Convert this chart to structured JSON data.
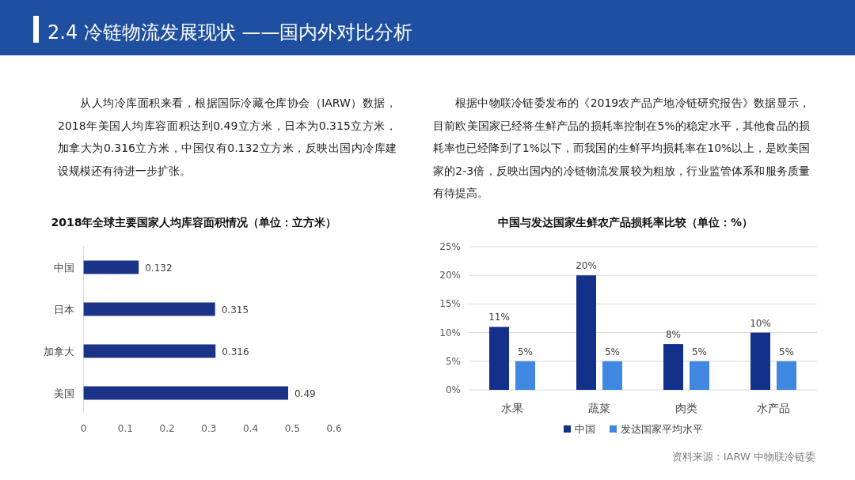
{
  "chart_data": [
    {
      "type": "bar",
      "orientation": "horizontal",
      "title": "2018年全球主要国家人均库容面积情况（单位：立方米）",
      "subtitle": "从人均冷库面积来看，根据国际冷藏仓库协会（IARW）数据，2018年美国人均库容面积达到0.49立方米，日本为0.315立方米，加拿大为0.316立方米，中国仅有0.132立方米，反映出国内冷库建设规模还有待进一步扩张。",
      "annotations": [
        "2.4 冷链物流发展现状 ——国内外对比分析"
      ],
      "categories": [
        "中国",
        "日本",
        "加拿大",
        "美国"
      ],
      "values": [
        0.132,
        0.315,
        0.316,
        0.49
      ],
      "color": "#1a3387",
      "xlim": [
        0,
        0.6
      ],
      "xticks": [
        0,
        0.1,
        0.2,
        0.3,
        0.4,
        0.5,
        0.6
      ],
      "data_labels": true
    },
    {
      "type": "bar",
      "title": "中国与发达国家生鲜农产品损耗率比较（单位：%）",
      "subtitle": "根据中物联冷链委发布的《2019农产品产地冷链研究报告》数据显示，目前欧美国家已经将生鲜产品的损耗率控制在5%的稳定水平，其他食品的损耗率也已经降到了1%以下，而我国的生鲜平均损耗率在10%以上，是欧美国家的2-3倍，反映出国内的冷链物流发展较为粗放，行业监管体系和服务质量有待提高。",
      "annotations": [
        "资料来源：IARW 中物联冷链委"
      ],
      "categories": [
        "水果",
        "蔬菜",
        "肉类",
        "水产品"
      ],
      "series": [
        {
          "name": "中国",
          "color": "#13318a",
          "values": [
            11,
            20,
            8,
            10
          ],
          "value_labels": [
            "11%",
            "20%",
            "8%",
            "10%"
          ]
        },
        {
          "name": "发达国家平均水平",
          "color": "#3f87e0",
          "values": [
            5,
            5,
            5,
            5
          ],
          "value_labels": [
            "5%",
            "5%",
            "5%",
            "5%"
          ]
        }
      ],
      "ylim": [
        0,
        25
      ],
      "yticks": [
        {
          "value": 0,
          "label": "0%"
        },
        {
          "value": 5,
          "label": "5%"
        },
        {
          "value": 10,
          "label": "10%"
        },
        {
          "value": 15,
          "label": "15%"
        },
        {
          "value": 20,
          "label": "20%"
        },
        {
          "value": 25,
          "label": "25%"
        }
      ],
      "grid": "y",
      "legend": "bottom"
    }
  ]
}
